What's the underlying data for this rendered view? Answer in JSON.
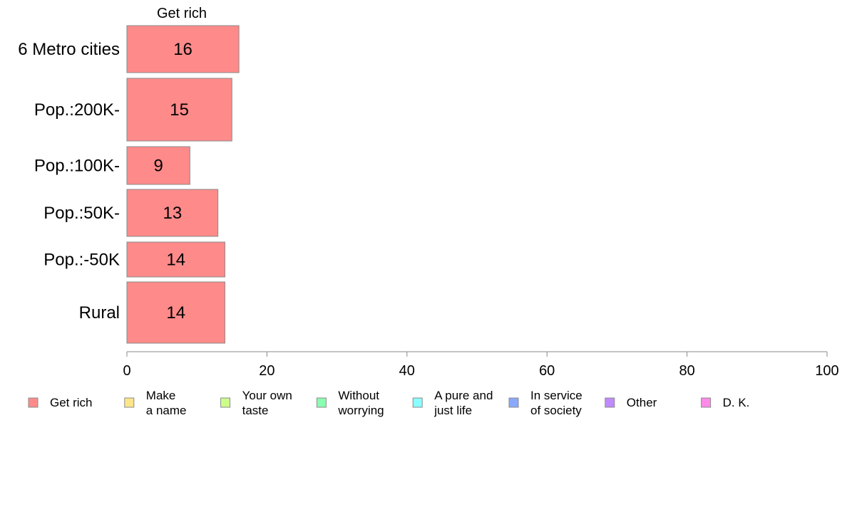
{
  "chart_data": {
    "type": "bar",
    "orientation": "horizontal",
    "stacked": true,
    "column_title": "Get rich",
    "categories": [
      "6 Metro cities",
      "Pop.:200K-",
      "Pop.:100K-",
      "Pop.:50K-",
      "Pop.:-50K",
      "Rural"
    ],
    "series": [
      {
        "name": "Get rich",
        "values": [
          16,
          15,
          9,
          13,
          14,
          14
        ],
        "color": "#ff8a8a"
      }
    ],
    "xlim": [
      0,
      100
    ],
    "xticks": [
      0,
      20,
      40,
      60,
      80,
      100
    ],
    "grid": false,
    "legend_position": "bottom",
    "legend": [
      {
        "lines": [
          "Get rich"
        ],
        "color": "#ff8a8a"
      },
      {
        "lines": [
          "Make",
          "a name"
        ],
        "color": "#ffe58a"
      },
      {
        "lines": [
          "Your own",
          "taste"
        ],
        "color": "#ccff8a"
      },
      {
        "lines": [
          "Without",
          "worrying"
        ],
        "color": "#8affb0"
      },
      {
        "lines": [
          "A pure and",
          "just life"
        ],
        "color": "#8affff"
      },
      {
        "lines": [
          "In service",
          "of society"
        ],
        "color": "#8aa8ff"
      },
      {
        "lines": [
          "Other"
        ],
        "color": "#c08aff"
      },
      {
        "lines": [
          "D. K."
        ],
        "color": "#ff8ae8"
      }
    ]
  }
}
